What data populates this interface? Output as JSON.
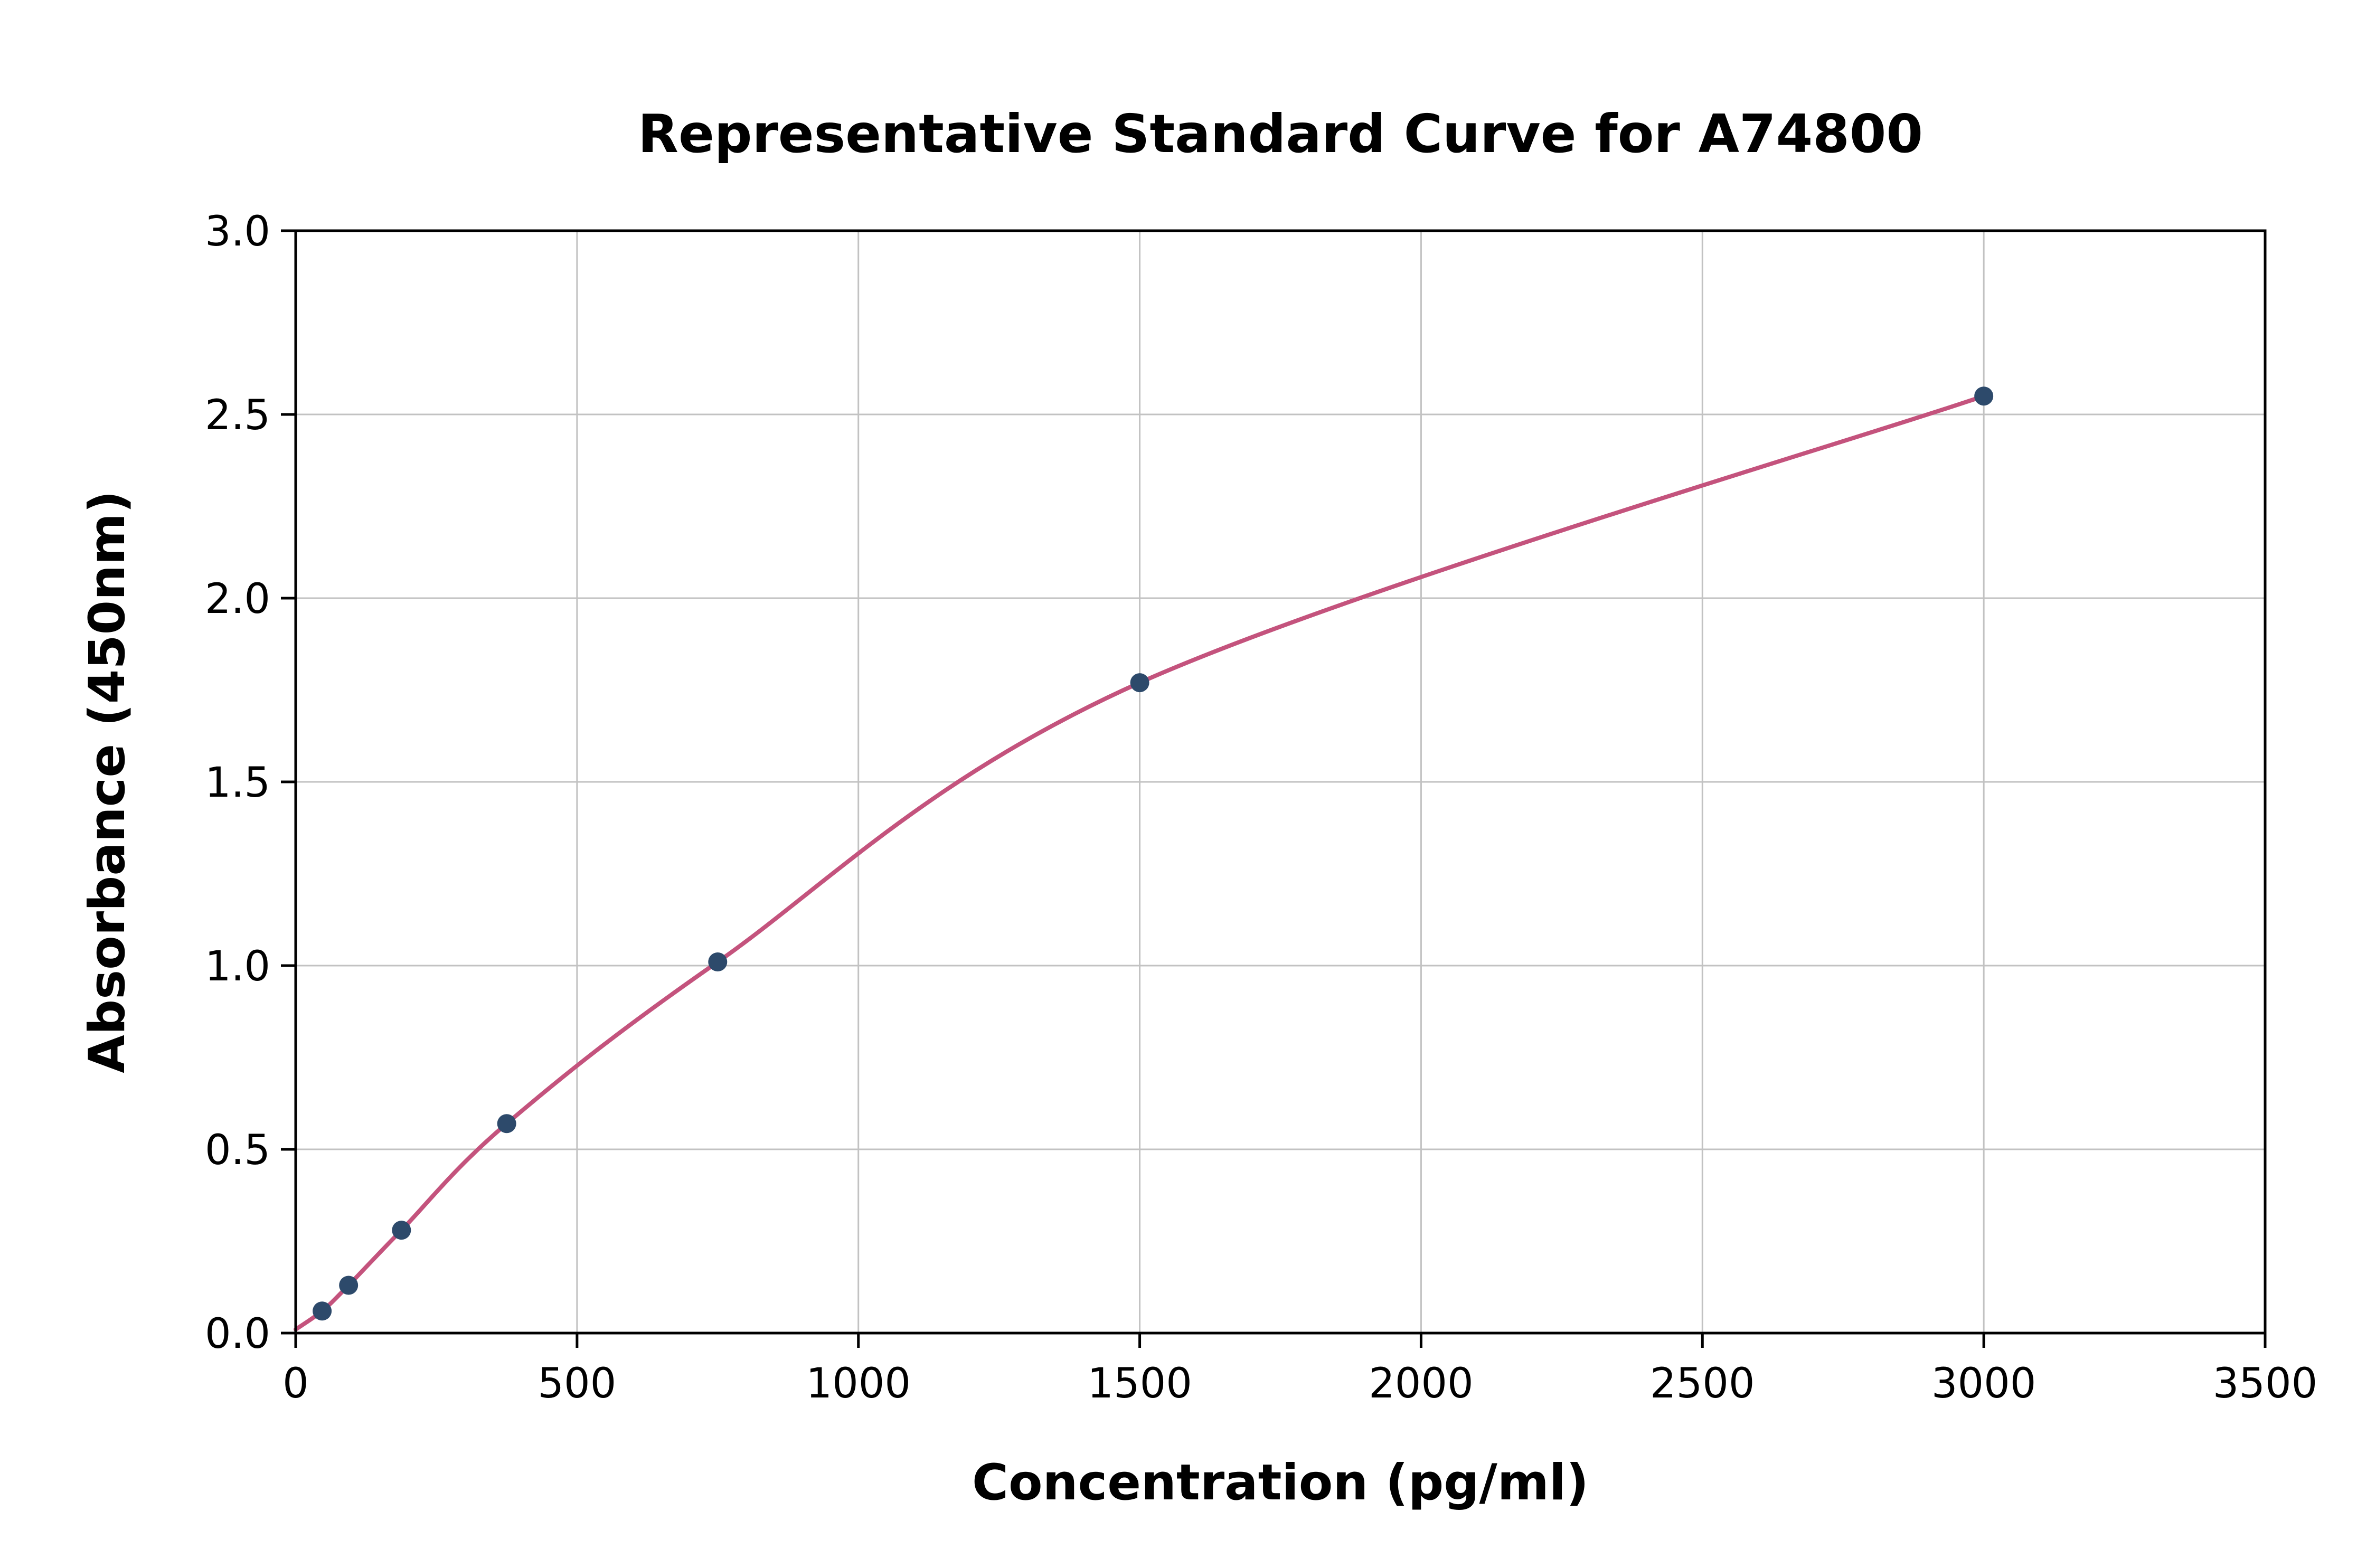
{
  "chart_data": {
    "type": "scatter",
    "title": "Representative Standard Curve for A74800",
    "xlabel": "Concentration (pg/ml)",
    "ylabel": "Absorbance (450nm)",
    "xlim": [
      0,
      3500
    ],
    "ylim": [
      0.0,
      3.0
    ],
    "grid": true,
    "legend": "none",
    "x_ticks": [
      0,
      500,
      1000,
      1500,
      2000,
      2500,
      3000,
      3500
    ],
    "x_tick_labels": [
      "0",
      "500",
      "1000",
      "1500",
      "2000",
      "2500",
      "3000",
      "3500"
    ],
    "y_ticks": [
      0.0,
      0.5,
      1.0,
      1.5,
      2.0,
      2.5,
      3.0
    ],
    "y_tick_labels": [
      "0.0",
      "0.5",
      "1.0",
      "1.5",
      "2.0",
      "2.5",
      "3.0"
    ],
    "points": [
      {
        "x": 47,
        "y": 0.06
      },
      {
        "x": 94,
        "y": 0.13
      },
      {
        "x": 188,
        "y": 0.28
      },
      {
        "x": 375,
        "y": 0.57
      },
      {
        "x": 750,
        "y": 1.01
      },
      {
        "x": 1500,
        "y": 1.77
      },
      {
        "x": 3000,
        "y": 2.55
      }
    ],
    "curve_start": {
      "x": 0,
      "y": 0.01
    },
    "colors": {
      "curve": "#c4537d",
      "points": "#2d4a6b",
      "grid": "#c2c2c2",
      "spine": "#000000",
      "background": "#ffffff"
    }
  }
}
